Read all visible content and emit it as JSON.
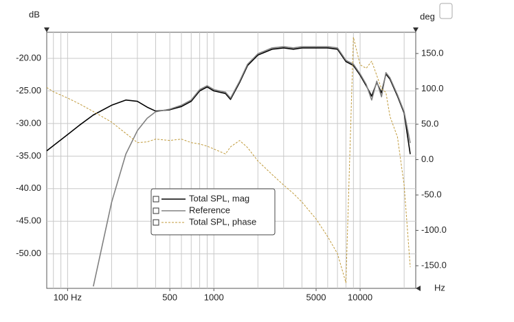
{
  "chart_data": {
    "type": "line",
    "ylabel": "dB",
    "y2label": "deg",
    "xlabel": "Hz",
    "xscale": "log",
    "grid": true,
    "xlim": [
      72,
      24000
    ],
    "ylim": [
      -55.3,
      -16
    ],
    "y2lim": [
      -182,
      180
    ],
    "xticks": [
      {
        "value": 100,
        "label": "100 Hz"
      },
      500,
      1000,
      5000,
      10000
    ],
    "xgrid": [
      80,
      90,
      100,
      200,
      300,
      400,
      500,
      600,
      700,
      800,
      900,
      1000,
      2000,
      3000,
      4000,
      5000,
      6000,
      7000,
      8000,
      9000,
      10000,
      20000
    ],
    "yticks": [
      {
        "value": -20,
        "label": "-20.00"
      },
      {
        "value": -25,
        "label": "-25.00"
      },
      {
        "value": -30,
        "label": "-30.00"
      },
      {
        "value": -35,
        "label": "-35.00"
      },
      {
        "value": -40,
        "label": "-40.00"
      },
      {
        "value": -45,
        "label": "-45.00"
      },
      {
        "value": -50,
        "label": "-50.00"
      }
    ],
    "y2ticks": [
      {
        "value": 150,
        "label": "150.0"
      },
      {
        "value": 100,
        "label": "100.0"
      },
      {
        "value": 50,
        "label": "50.0"
      },
      {
        "value": 0,
        "label": "0.0"
      },
      {
        "value": -50,
        "label": "-50.0"
      },
      {
        "value": -100,
        "label": "-100.0"
      },
      {
        "value": -150,
        "label": "-150.0"
      }
    ],
    "x": [
      72,
      80,
      100,
      120,
      150,
      200,
      250,
      300,
      350,
      400,
      500,
      600,
      700,
      800,
      900,
      1000,
      1200,
      1300,
      1500,
      1700,
      2000,
      2500,
      3000,
      3500,
      4000,
      5000,
      6000,
      7000,
      8000,
      9000,
      10000,
      11000,
      12000,
      13000,
      14000,
      15000,
      16000,
      18000,
      20000,
      22000
    ],
    "series": [
      {
        "name": "Total SPL, mag",
        "color": "#000000",
        "dash": false,
        "values": [
          -34.2,
          -33.4,
          -31.7,
          -30.3,
          -28.7,
          -27.2,
          -26.4,
          -26.6,
          -27.5,
          -28.1,
          -27.9,
          -27.4,
          -26.6,
          -25.0,
          -24.4,
          -25.0,
          -25.4,
          -26.3,
          -23.7,
          -21.1,
          -19.5,
          -18.6,
          -18.4,
          -18.6,
          -18.4,
          -18.4,
          -18.4,
          -18.6,
          -20.5,
          -21.1,
          -22.6,
          -24.2,
          -25.8,
          -23.7,
          -25.3,
          -22.4,
          -23.2,
          -25.8,
          -28.4,
          -34.7
        ]
      },
      {
        "name": "Reference",
        "color": "#808080",
        "dash": false,
        "values": [
          null,
          null,
          null,
          null,
          -55.0,
          -42.1,
          -34.7,
          -31.1,
          -29.2,
          -28.2,
          -27.8,
          -27.2,
          -26.4,
          -24.8,
          -24.2,
          -24.8,
          -25.2,
          -26.1,
          -23.5,
          -20.9,
          -19.3,
          -18.4,
          -18.2,
          -18.4,
          -18.2,
          -18.2,
          -18.2,
          -18.4,
          -20.3,
          -20.9,
          -22.4,
          -24.0,
          -26.4,
          -23.5,
          -25.9,
          -22.2,
          -23.0,
          -25.6,
          -28.2,
          -33.0
        ]
      },
      {
        "name": "Total SPL, phase",
        "color": "#c09a3a",
        "dash": true,
        "axis": "y2",
        "values": [
          102,
          96,
          87,
          79,
          68,
          53,
          37,
          24,
          25,
          29,
          27,
          29,
          24,
          22,
          19,
          15,
          8,
          18,
          27,
          17,
          -2,
          -21,
          -36,
          -48,
          -60,
          -84,
          -109,
          -133,
          -174,
          173,
          134,
          129,
          139,
          119,
          100,
          95,
          61,
          32,
          -36,
          -152
        ]
      }
    ]
  }
}
